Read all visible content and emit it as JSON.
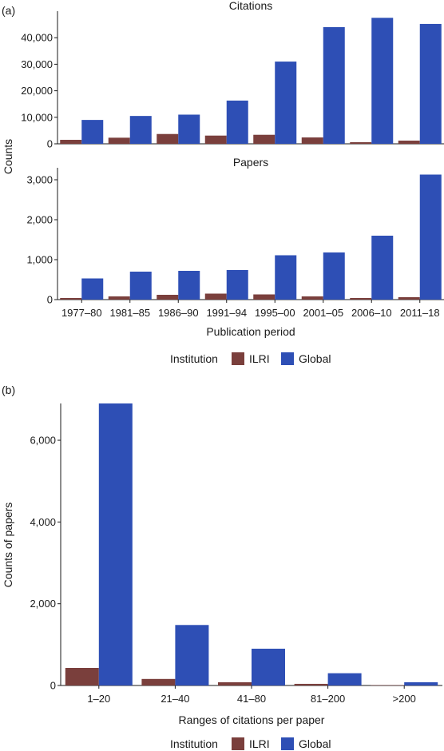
{
  "panel_a_label": "(a)",
  "panel_b_label": "(b)",
  "colors": {
    "ILRI": "#7a3f3c",
    "Global": "#2e4fb5"
  },
  "chart_data": [
    {
      "type": "bar",
      "panel": "(a)",
      "title": "Citations",
      "ylabel": "Counts",
      "xlabel": "",
      "categories": [
        "1977–80",
        "1981–85",
        "1986–90",
        "1991–94",
        "1995–00",
        "2001–05",
        "2006–10",
        "2011–18"
      ],
      "series": [
        {
          "name": "ILRI",
          "values": [
            1500,
            2300,
            3700,
            3100,
            3400,
            2400,
            600,
            1200
          ]
        },
        {
          "name": "Global",
          "values": [
            9000,
            10500,
            11000,
            16300,
            31000,
            44000,
            47500,
            45200
          ]
        }
      ],
      "ylim": [
        0,
        50000
      ],
      "yticks": [
        0,
        10000,
        20000,
        30000,
        40000
      ],
      "ytick_labels": [
        "0",
        "10,000",
        "20,000",
        "30,000",
        "40,000"
      ]
    },
    {
      "type": "bar",
      "panel": "(a)",
      "title": "Papers",
      "ylabel": "",
      "xlabel": "Publication period",
      "categories": [
        "1977–80",
        "1981–85",
        "1986–90",
        "1991–94",
        "1995–00",
        "2001–05",
        "2006–10",
        "2011–18"
      ],
      "series": [
        {
          "name": "ILRI",
          "values": [
            40,
            80,
            120,
            150,
            130,
            80,
            40,
            60
          ]
        },
        {
          "name": "Global",
          "values": [
            530,
            700,
            720,
            740,
            1110,
            1180,
            1600,
            3130
          ]
        }
      ],
      "ylim": [
        0,
        3300
      ],
      "yticks": [
        0,
        1000,
        2000,
        3000
      ],
      "ytick_labels": [
        "0",
        "1,000",
        "2,000",
        "3,000"
      ],
      "legend": {
        "title": "Institution",
        "entries": [
          "ILRI",
          "Global"
        ],
        "placement": "bottom"
      }
    },
    {
      "type": "bar",
      "panel": "(b)",
      "title": "",
      "ylabel": "Counts of papers",
      "xlabel": "Ranges of citations per paper",
      "categories": [
        "1–20",
        "21–40",
        "41–80",
        "81–200",
        ">200"
      ],
      "series": [
        {
          "name": "ILRI",
          "values": [
            430,
            160,
            80,
            40,
            10
          ]
        },
        {
          "name": "Global",
          "values": [
            6900,
            1480,
            900,
            300,
            80
          ]
        }
      ],
      "ylim": [
        0,
        6900
      ],
      "yticks": [
        0,
        2000,
        4000,
        6000
      ],
      "ytick_labels": [
        "0",
        "2,000",
        "4,000",
        "6,000"
      ],
      "legend": {
        "title": "Institution",
        "entries": [
          "ILRI",
          "Global"
        ],
        "placement": "bottom"
      }
    }
  ]
}
